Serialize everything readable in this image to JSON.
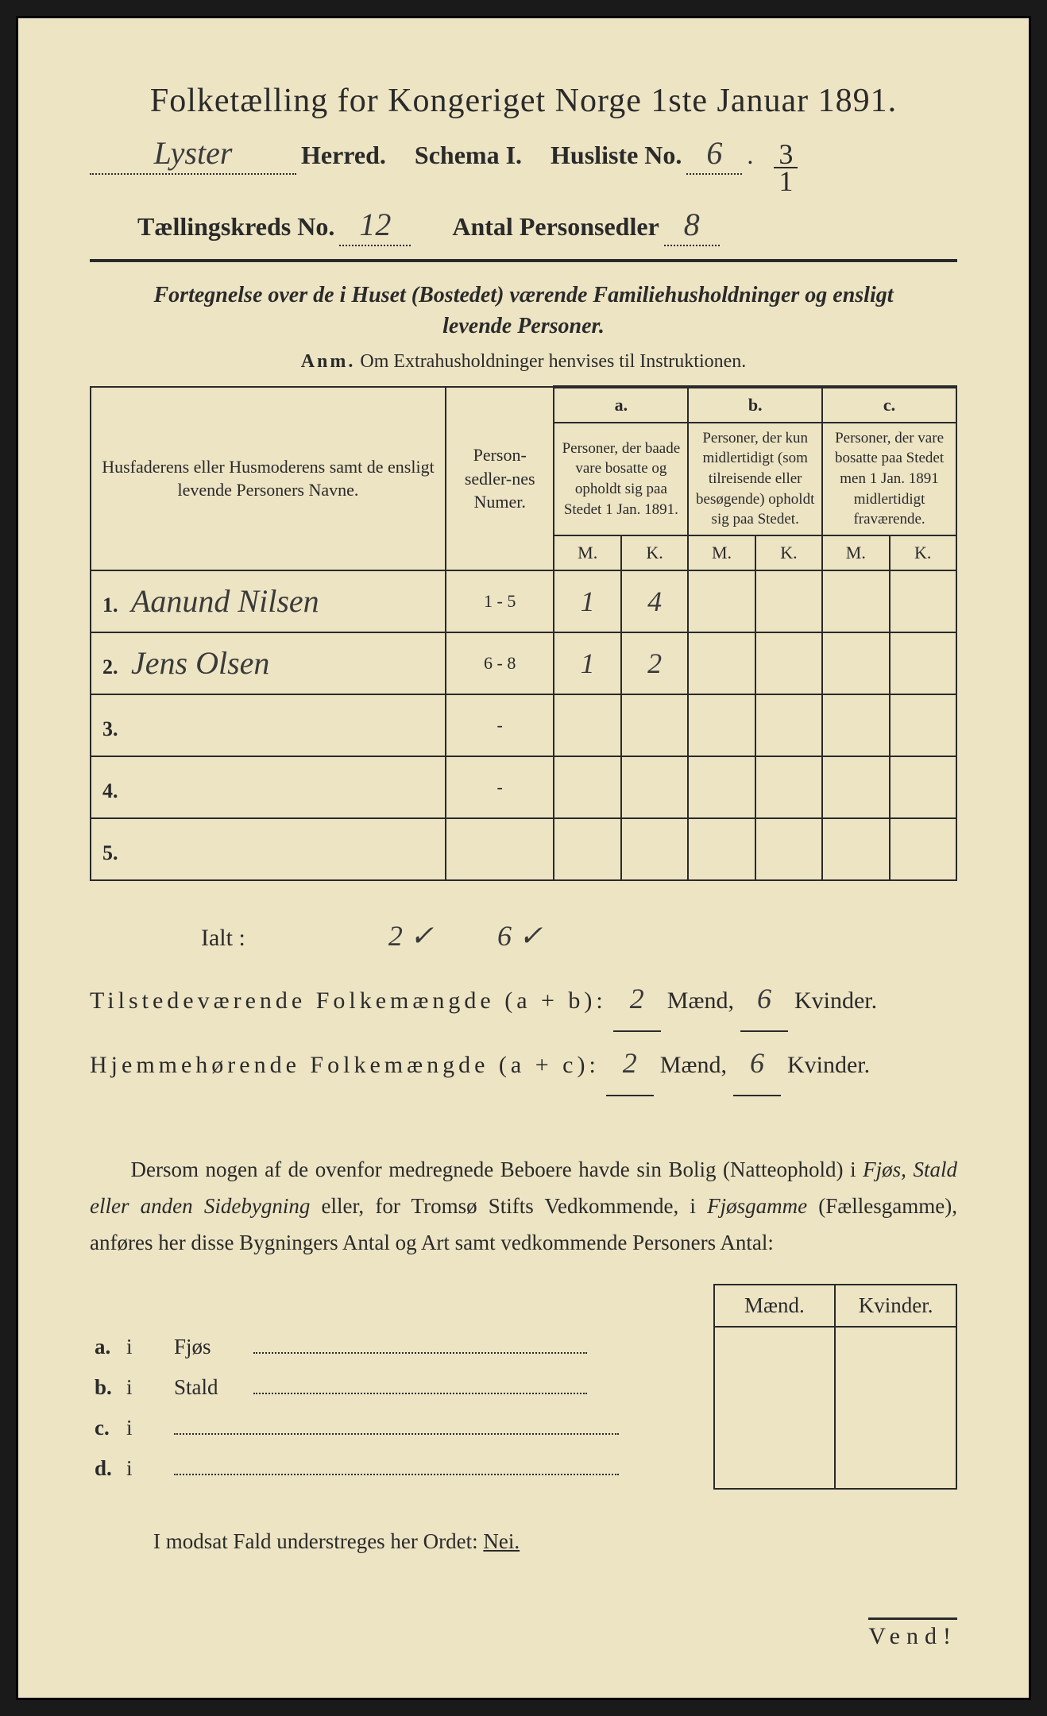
{
  "title": "Folketælling for Kongeriget Norge 1ste Januar 1891.",
  "header": {
    "herred_value": "Lyster",
    "herred_label": "Herred.",
    "schema_label": "Schema I.",
    "husliste_label": "Husliste No.",
    "husliste_value": "6",
    "fraction_num": "3",
    "fraction_den": "1",
    "kreds_label": "Tællingskreds No.",
    "kreds_value": "12",
    "antal_label": "Antal Personsedler",
    "antal_value": "8"
  },
  "subtitle_line1": "Fortegnelse over de i Huset (Bostedet) værende Familiehusholdninger og ensligt",
  "subtitle_line2": "levende Personer.",
  "anm_bold": "Anm.",
  "anm_text": "Om Extrahusholdninger henvises til Instruktionen.",
  "table_headers": {
    "col1": "Husfaderens eller Husmoderens samt de ensligt levende Personers Navne.",
    "col2": "Person-sedler-nes Numer.",
    "col_a_letter": "a.",
    "col_a": "Personer, der baade vare bosatte og opholdt sig paa Stedet 1 Jan. 1891.",
    "col_b_letter": "b.",
    "col_b": "Personer, der kun midlertidigt (som tilreisende eller besøgende) opholdt sig paa Stedet.",
    "col_c_letter": "c.",
    "col_c": "Personer, der vare bosatte paa Stedet men 1 Jan. 1891 midlertidigt fraværende.",
    "m": "M.",
    "k": "K."
  },
  "rows": [
    {
      "num": "1.",
      "name": "Aanund Nilsen",
      "sedler": "1 - 5",
      "am": "1",
      "ak": "4",
      "bm": "",
      "bk": "",
      "cm": "",
      "ck": ""
    },
    {
      "num": "2.",
      "name": "Jens Olsen",
      "sedler": "6 - 8",
      "am": "1",
      "ak": "2",
      "bm": "",
      "bk": "",
      "cm": "",
      "ck": ""
    },
    {
      "num": "3.",
      "name": "",
      "sedler": "-",
      "am": "",
      "ak": "",
      "bm": "",
      "bk": "",
      "cm": "",
      "ck": ""
    },
    {
      "num": "4.",
      "name": "",
      "sedler": "-",
      "am": "",
      "ak": "",
      "bm": "",
      "bk": "",
      "cm": "",
      "ck": ""
    },
    {
      "num": "5.",
      "name": "",
      "sedler": "",
      "am": "",
      "ak": "",
      "bm": "",
      "bk": "",
      "cm": "",
      "ck": ""
    }
  ],
  "totals": {
    "ialt_label": "Ialt :",
    "ialt_m": "2 ✓",
    "ialt_k": "6 ✓",
    "tilstede_label": "Tilstedeværende Folkemængde (a + b):",
    "tilstede_m": "2",
    "tilstede_k": "6",
    "hjem_label": "Hjemmehørende Folkemængde (a + c):",
    "hjem_m": "2",
    "hjem_k": "6",
    "maend": "Mænd,",
    "kvinder": "Kvinder."
  },
  "para": "Dersom nogen af de ovenfor medregnede Beboere havde sin Bolig (Natteophold) i Fjøs, Stald eller anden Sidebygning eller, for Tromsø Stifts Vedkommende, i Fjøsgamme (Fællesgamme), anføres her disse Bygningers Antal og Art samt vedkommende Personers Antal:",
  "second_table": {
    "maend": "Mænd.",
    "kvinder": "Kvinder.",
    "rows": [
      {
        "letter": "a.",
        "i": "i",
        "label": "Fjøs"
      },
      {
        "letter": "b.",
        "i": "i",
        "label": "Stald"
      },
      {
        "letter": "c.",
        "i": "i",
        "label": ""
      },
      {
        "letter": "d.",
        "i": "i",
        "label": ""
      }
    ]
  },
  "nei_line_pre": "I modsat Fald understreges her Ordet: ",
  "nei": "Nei.",
  "vend": "Vend!",
  "colors": {
    "paper": "#ede4c4",
    "ink": "#2a2a2a",
    "frame": "#000000"
  }
}
